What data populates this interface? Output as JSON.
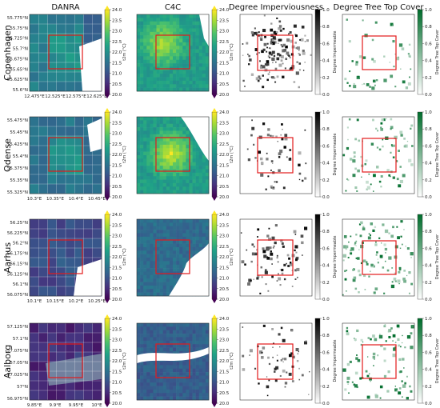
{
  "chart_data": {
    "type": "heatmap",
    "columns": [
      "DANRA",
      "C4C",
      "Degree Imperviousness",
      "Degree Tree Top Cover"
    ],
    "rows": [
      {
        "city": "Copenhagen",
        "lat_ticks": [
          "55.775°N",
          "55.75°N",
          "55.725°N",
          "55.7°N",
          "55.675°N",
          "55.65°N",
          "55.625°N",
          "55.6°N"
        ],
        "lon_ticks": [
          "12.475°E",
          "12.525°E",
          "12.575°E",
          "12.625°E"
        ]
      },
      {
        "city": "Odense",
        "lat_ticks": [
          "55.475°N",
          "55.45°N",
          "55.425°N",
          "55.4°N",
          "55.375°N",
          "55.35°N",
          "55.325°N"
        ],
        "lon_ticks": [
          "10.3°E",
          "10.35°E",
          "10.4°E",
          "10.45°E"
        ]
      },
      {
        "city": "Aarhus",
        "lat_ticks": [
          "56.25°N",
          "56.225°N",
          "56.2°N",
          "56.175°N",
          "56.15°N",
          "56.125°N",
          "56.1°N",
          "56.075°N"
        ],
        "lon_ticks": [
          "10.1°E",
          "10.15°E",
          "10.2°E",
          "10.25°E"
        ]
      },
      {
        "city": "Aalborg",
        "lat_ticks": [
          "57.125°N",
          "57.1°N",
          "57.075°N",
          "57.05°N",
          "57.025°N",
          "57°N",
          "56.975°N"
        ],
        "lon_ticks": [
          "9.85°E",
          "9.9°E",
          "9.95°E",
          "10°E"
        ]
      }
    ],
    "colorbars": {
      "temperature": {
        "label": "t2m (°C)",
        "range": [
          20.0,
          24.0
        ],
        "ticks": [
          "20.0",
          "20.5",
          "21.0",
          "21.5",
          "22.0",
          "22.5",
          "23.0",
          "23.5",
          "24.0"
        ],
        "colormap": [
          "#440154",
          "#46327e",
          "#365c8d",
          "#277f8e",
          "#1fa187",
          "#4ac16d",
          "#a0da39",
          "#fde725"
        ]
      },
      "imperviousness": {
        "label": "Degree Impermeable",
        "range": [
          0.0,
          1.0
        ],
        "ticks": [
          "0.0",
          "0.2",
          "0.4",
          "0.6",
          "0.8",
          "1.0"
        ],
        "colormap": [
          "#ffffff",
          "#000000"
        ]
      },
      "tree_cover": {
        "label": "Degree Tree Top Cover",
        "range": [
          0.0,
          1.0
        ],
        "ticks": [
          "0.0",
          "0.2",
          "0.4",
          "0.6",
          "0.8",
          "1.0"
        ],
        "colormap": [
          "#ffffff",
          "#006d2c"
        ]
      }
    },
    "highlight_box_color": "#e31a1c"
  }
}
